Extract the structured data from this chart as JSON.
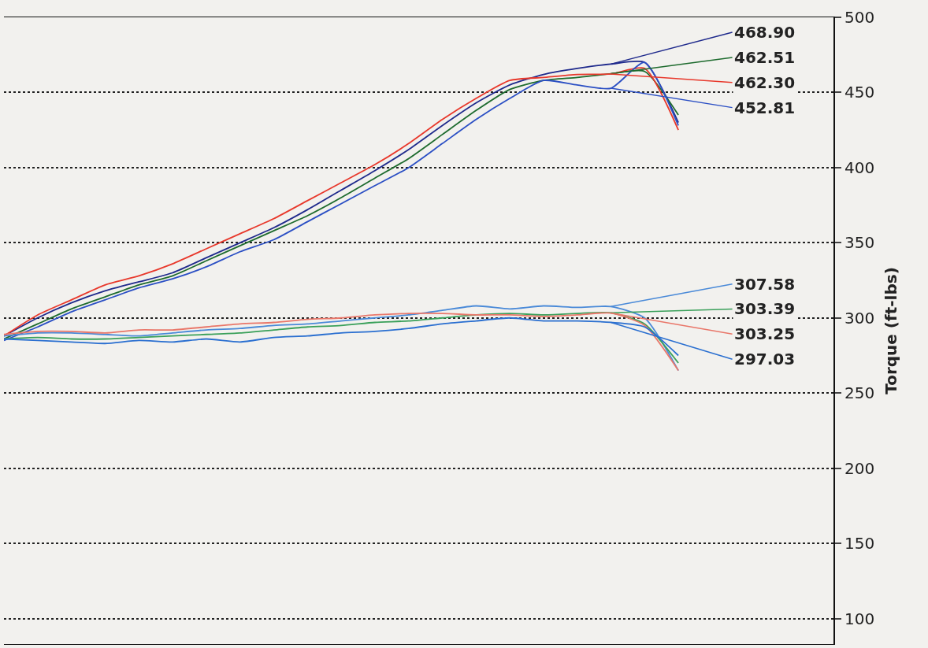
{
  "chart_data": {
    "type": "line",
    "ylabel": "Torque (ft-lbs)",
    "categories": [
      null,
      null,
      null,
      null,
      null,
      null,
      null,
      null,
      null,
      null,
      null,
      null,
      null,
      null,
      null,
      null,
      null,
      null,
      null,
      null,
      null
    ],
    "ylim": [
      83,
      500
    ],
    "yticks": [
      100,
      150,
      200,
      250,
      300,
      350,
      400,
      450,
      500
    ],
    "grid": "y",
    "tick_labels": "y",
    "marker": "none",
    "line_style": "solid",
    "series": [
      {
        "color": "#1f2a8c",
        "values": [
          288,
          300,
          310,
          318,
          324,
          330,
          340,
          350,
          360,
          372,
          385,
          398,
          412,
          428,
          443,
          455,
          462,
          466,
          468.9,
          470,
          430
        ],
        "value_labels": [
          null,
          null,
          null,
          null,
          null,
          null,
          null,
          null,
          null,
          null,
          null,
          null,
          null,
          null,
          null,
          null,
          null,
          null,
          "468.90",
          null,
          null
        ]
      },
      {
        "color": "#1e6b2e",
        "values": [
          286,
          296,
          306,
          314,
          322,
          328,
          338,
          348,
          358,
          368,
          380,
          393,
          406,
          422,
          438,
          452,
          458,
          460,
          462.51,
          464,
          435
        ],
        "value_labels": [
          null,
          null,
          null,
          null,
          null,
          null,
          null,
          null,
          null,
          null,
          null,
          null,
          null,
          null,
          null,
          null,
          null,
          null,
          "462.51",
          null,
          null
        ]
      },
      {
        "color": "#e8382b",
        "values": [
          288,
          302,
          312,
          322,
          328,
          336,
          346,
          356,
          366,
          378,
          390,
          402,
          416,
          432,
          446,
          458,
          460,
          462,
          462.3,
          466,
          425
        ],
        "value_labels": [
          null,
          null,
          null,
          null,
          null,
          null,
          null,
          null,
          null,
          null,
          null,
          null,
          null,
          null,
          null,
          null,
          null,
          null,
          "462.30",
          null,
          null
        ]
      },
      {
        "color": "#2b4fc4",
        "values": [
          285,
          294,
          304,
          312,
          320,
          326,
          334,
          344,
          352,
          364,
          376,
          388,
          400,
          416,
          432,
          446,
          458,
          455,
          452.81,
          470,
          428
        ],
        "value_labels": [
          null,
          null,
          null,
          null,
          null,
          null,
          null,
          null,
          null,
          null,
          null,
          null,
          null,
          null,
          null,
          null,
          null,
          null,
          "452.81",
          null,
          null
        ]
      },
      {
        "color": "#4a8ad8",
        "values": [
          288,
          290,
          290,
          289,
          288,
          290,
          292,
          293,
          295,
          296,
          298,
          300,
          302,
          305,
          308,
          306,
          308,
          307,
          307.58,
          300,
          265
        ],
        "value_labels": [
          null,
          null,
          null,
          null,
          null,
          null,
          null,
          null,
          null,
          null,
          null,
          null,
          null,
          null,
          null,
          null,
          null,
          null,
          "307.58",
          null,
          null
        ]
      },
      {
        "color": "#3aa05a",
        "values": [
          286,
          287,
          286,
          286,
          287,
          288,
          289,
          290,
          292,
          294,
          295,
          297,
          298,
          300,
          302,
          303,
          302,
          303,
          303.39,
          296,
          270
        ],
        "value_labels": [
          null,
          null,
          null,
          null,
          null,
          null,
          null,
          null,
          null,
          null,
          null,
          null,
          null,
          null,
          null,
          null,
          null,
          null,
          "303.39",
          null,
          null
        ]
      },
      {
        "color": "#e9776a",
        "values": [
          289,
          291,
          291,
          290,
          292,
          292,
          294,
          296,
          297,
          299,
          300,
          302,
          303,
          303,
          302,
          302,
          301,
          302,
          303.25,
          295,
          265
        ],
        "value_labels": [
          null,
          null,
          null,
          null,
          null,
          null,
          null,
          null,
          null,
          null,
          null,
          null,
          null,
          null,
          null,
          null,
          null,
          null,
          "303.25",
          null,
          null
        ]
      },
      {
        "color": "#2a6fd0",
        "values": [
          286,
          285,
          284,
          283,
          285,
          284,
          286,
          284,
          287,
          288,
          290,
          291,
          293,
          296,
          298,
          300,
          298,
          298,
          297.03,
          294,
          275
        ],
        "value_labels": [
          null,
          null,
          null,
          null,
          null,
          null,
          null,
          null,
          null,
          null,
          null,
          null,
          null,
          null,
          null,
          null,
          null,
          null,
          "297.03",
          null,
          null
        ]
      }
    ]
  }
}
